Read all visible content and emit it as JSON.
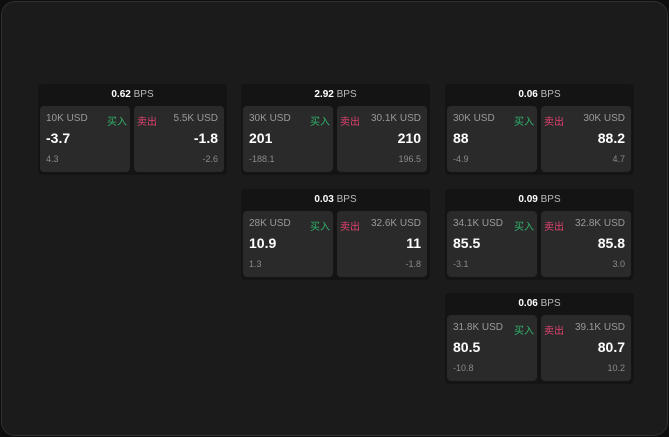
{
  "bps_unit": "BPS",
  "buy_label": "买入",
  "sell_label": "卖出",
  "colors": {
    "buy": "#2fb36a",
    "sell": "#e0416d"
  },
  "panels": [
    {
      "spread": "0.62",
      "buy": {
        "size": "10K USD",
        "price": "-3.7",
        "change": "4.3"
      },
      "sell": {
        "size": "5.5K USD",
        "price": "-1.8",
        "change": "-2.6"
      }
    },
    {
      "spread": "2.92",
      "buy": {
        "size": "30K USD",
        "price": "201",
        "change": "-188.1"
      },
      "sell": {
        "size": "30.1K USD",
        "price": "210",
        "change": "196.5"
      }
    },
    {
      "spread": "0.06",
      "buy": {
        "size": "30K USD",
        "price": "88",
        "change": "-4.9"
      },
      "sell": {
        "size": "30K USD",
        "price": "88.2",
        "change": "4.7"
      }
    },
    {
      "spread": "0.03",
      "buy": {
        "size": "28K USD",
        "price": "10.9",
        "change": "1.3"
      },
      "sell": {
        "size": "32.6K USD",
        "price": "11",
        "change": "-1.8"
      }
    },
    {
      "spread": "0.09",
      "buy": {
        "size": "34.1K USD",
        "price": "85.5",
        "change": "-3.1"
      },
      "sell": {
        "size": "32.8K USD",
        "price": "85.8",
        "change": "3.0"
      }
    },
    {
      "spread": "0.06",
      "buy": {
        "size": "31.8K USD",
        "price": "80.5",
        "change": "-10.8"
      },
      "sell": {
        "size": "39.1K USD",
        "price": "80.7",
        "change": "10.2"
      }
    }
  ]
}
